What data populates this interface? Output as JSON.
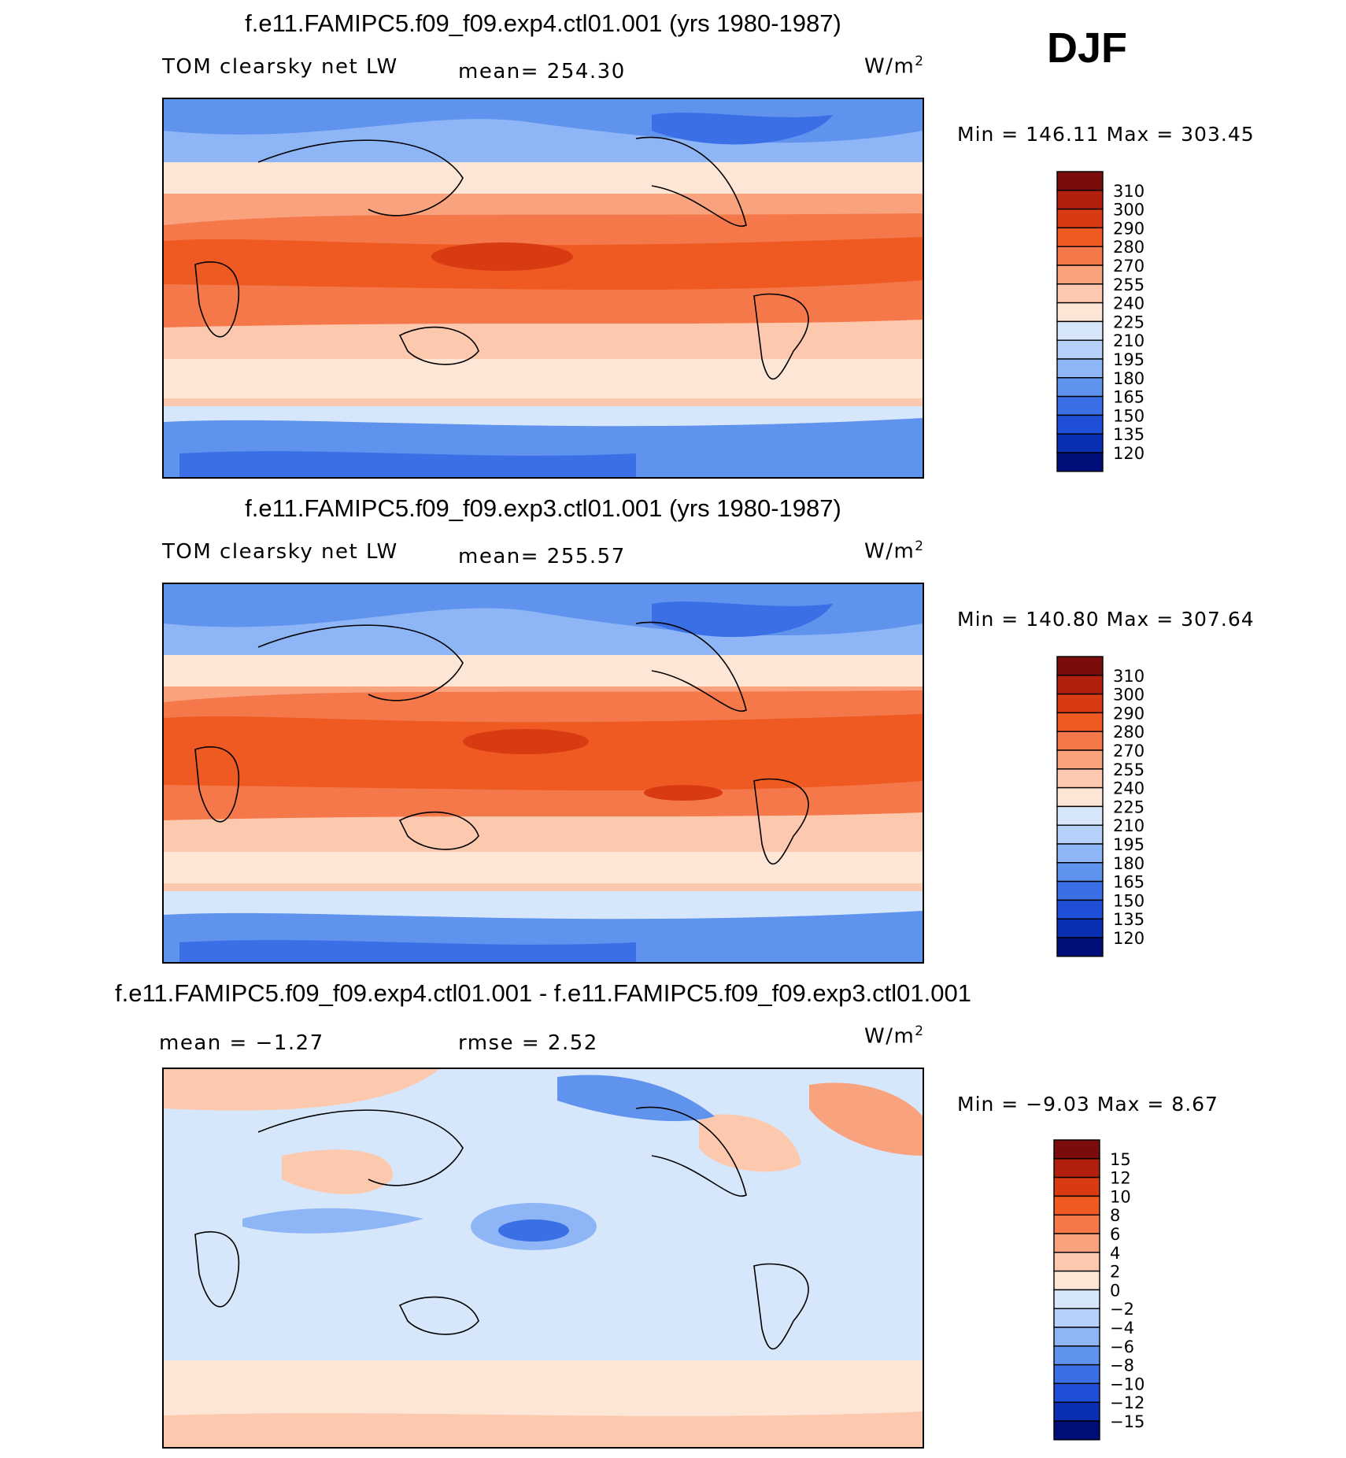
{
  "season": "DJF",
  "panels": [
    {
      "title": "f.e11.FAMIPC5.f09_f09.exp4.ctl01.001 (yrs 1980-1987)",
      "variable": "TOM clearsky net LW",
      "stat1": "mean= 254.30",
      "stat2": "",
      "units": "W/m",
      "units_sup": "2",
      "minmax": "Min = 146.11 Max = 303.45",
      "palette": "abs"
    },
    {
      "title": "f.e11.FAMIPC5.f09_f09.exp3.ctl01.001 (yrs 1980-1987)",
      "variable": "TOM clearsky net LW",
      "stat1": "mean= 255.57",
      "stat2": "",
      "units": "W/m",
      "units_sup": "2",
      "minmax": "Min = 140.80 Max = 307.64",
      "palette": "abs"
    },
    {
      "title": "f.e11.FAMIPC5.f09_f09.exp4.ctl01.001 - f.e11.FAMIPC5.f09_f09.exp3.ctl01.001",
      "variable": "mean = −1.27",
      "stat1": "rmse = 2.52",
      "stat2": "",
      "units": "W/m",
      "units_sup": "2",
      "minmax": "Min = −9.03 Max = 8.67",
      "palette": "diff"
    }
  ],
  "colorbars": {
    "abs": {
      "labels": [
        "310",
        "300",
        "290",
        "280",
        "270",
        "255",
        "240",
        "225",
        "210",
        "195",
        "180",
        "165",
        "150",
        "135",
        "120"
      ],
      "colors": [
        "#7a0c0c",
        "#b1200e",
        "#d83a12",
        "#ef5a23",
        "#f5784a",
        "#f9a27e",
        "#fcc9ae",
        "#fde6d6",
        "#d6e7fb",
        "#b5d1fa",
        "#8eb6f6",
        "#5f93ee",
        "#3a6fe6",
        "#1f4fd6",
        "#0b2fb2",
        "#000e7a"
      ]
    },
    "diff": {
      "labels": [
        "15",
        "12",
        "10",
        "8",
        "6",
        "4",
        "2",
        "0",
        "−2",
        "−4",
        "−6",
        "−8",
        "−10",
        "−12",
        "−15"
      ],
      "colors": [
        "#7a0c0c",
        "#b1200e",
        "#d83a12",
        "#ef5a23",
        "#f5784a",
        "#f9a27e",
        "#fcc9ae",
        "#fde6d6",
        "#d6e7fb",
        "#b5d1fa",
        "#8eb6f6",
        "#5f93ee",
        "#3a6fe6",
        "#1f4fd6",
        "#0b2fb2",
        "#000e7a"
      ]
    }
  }
}
